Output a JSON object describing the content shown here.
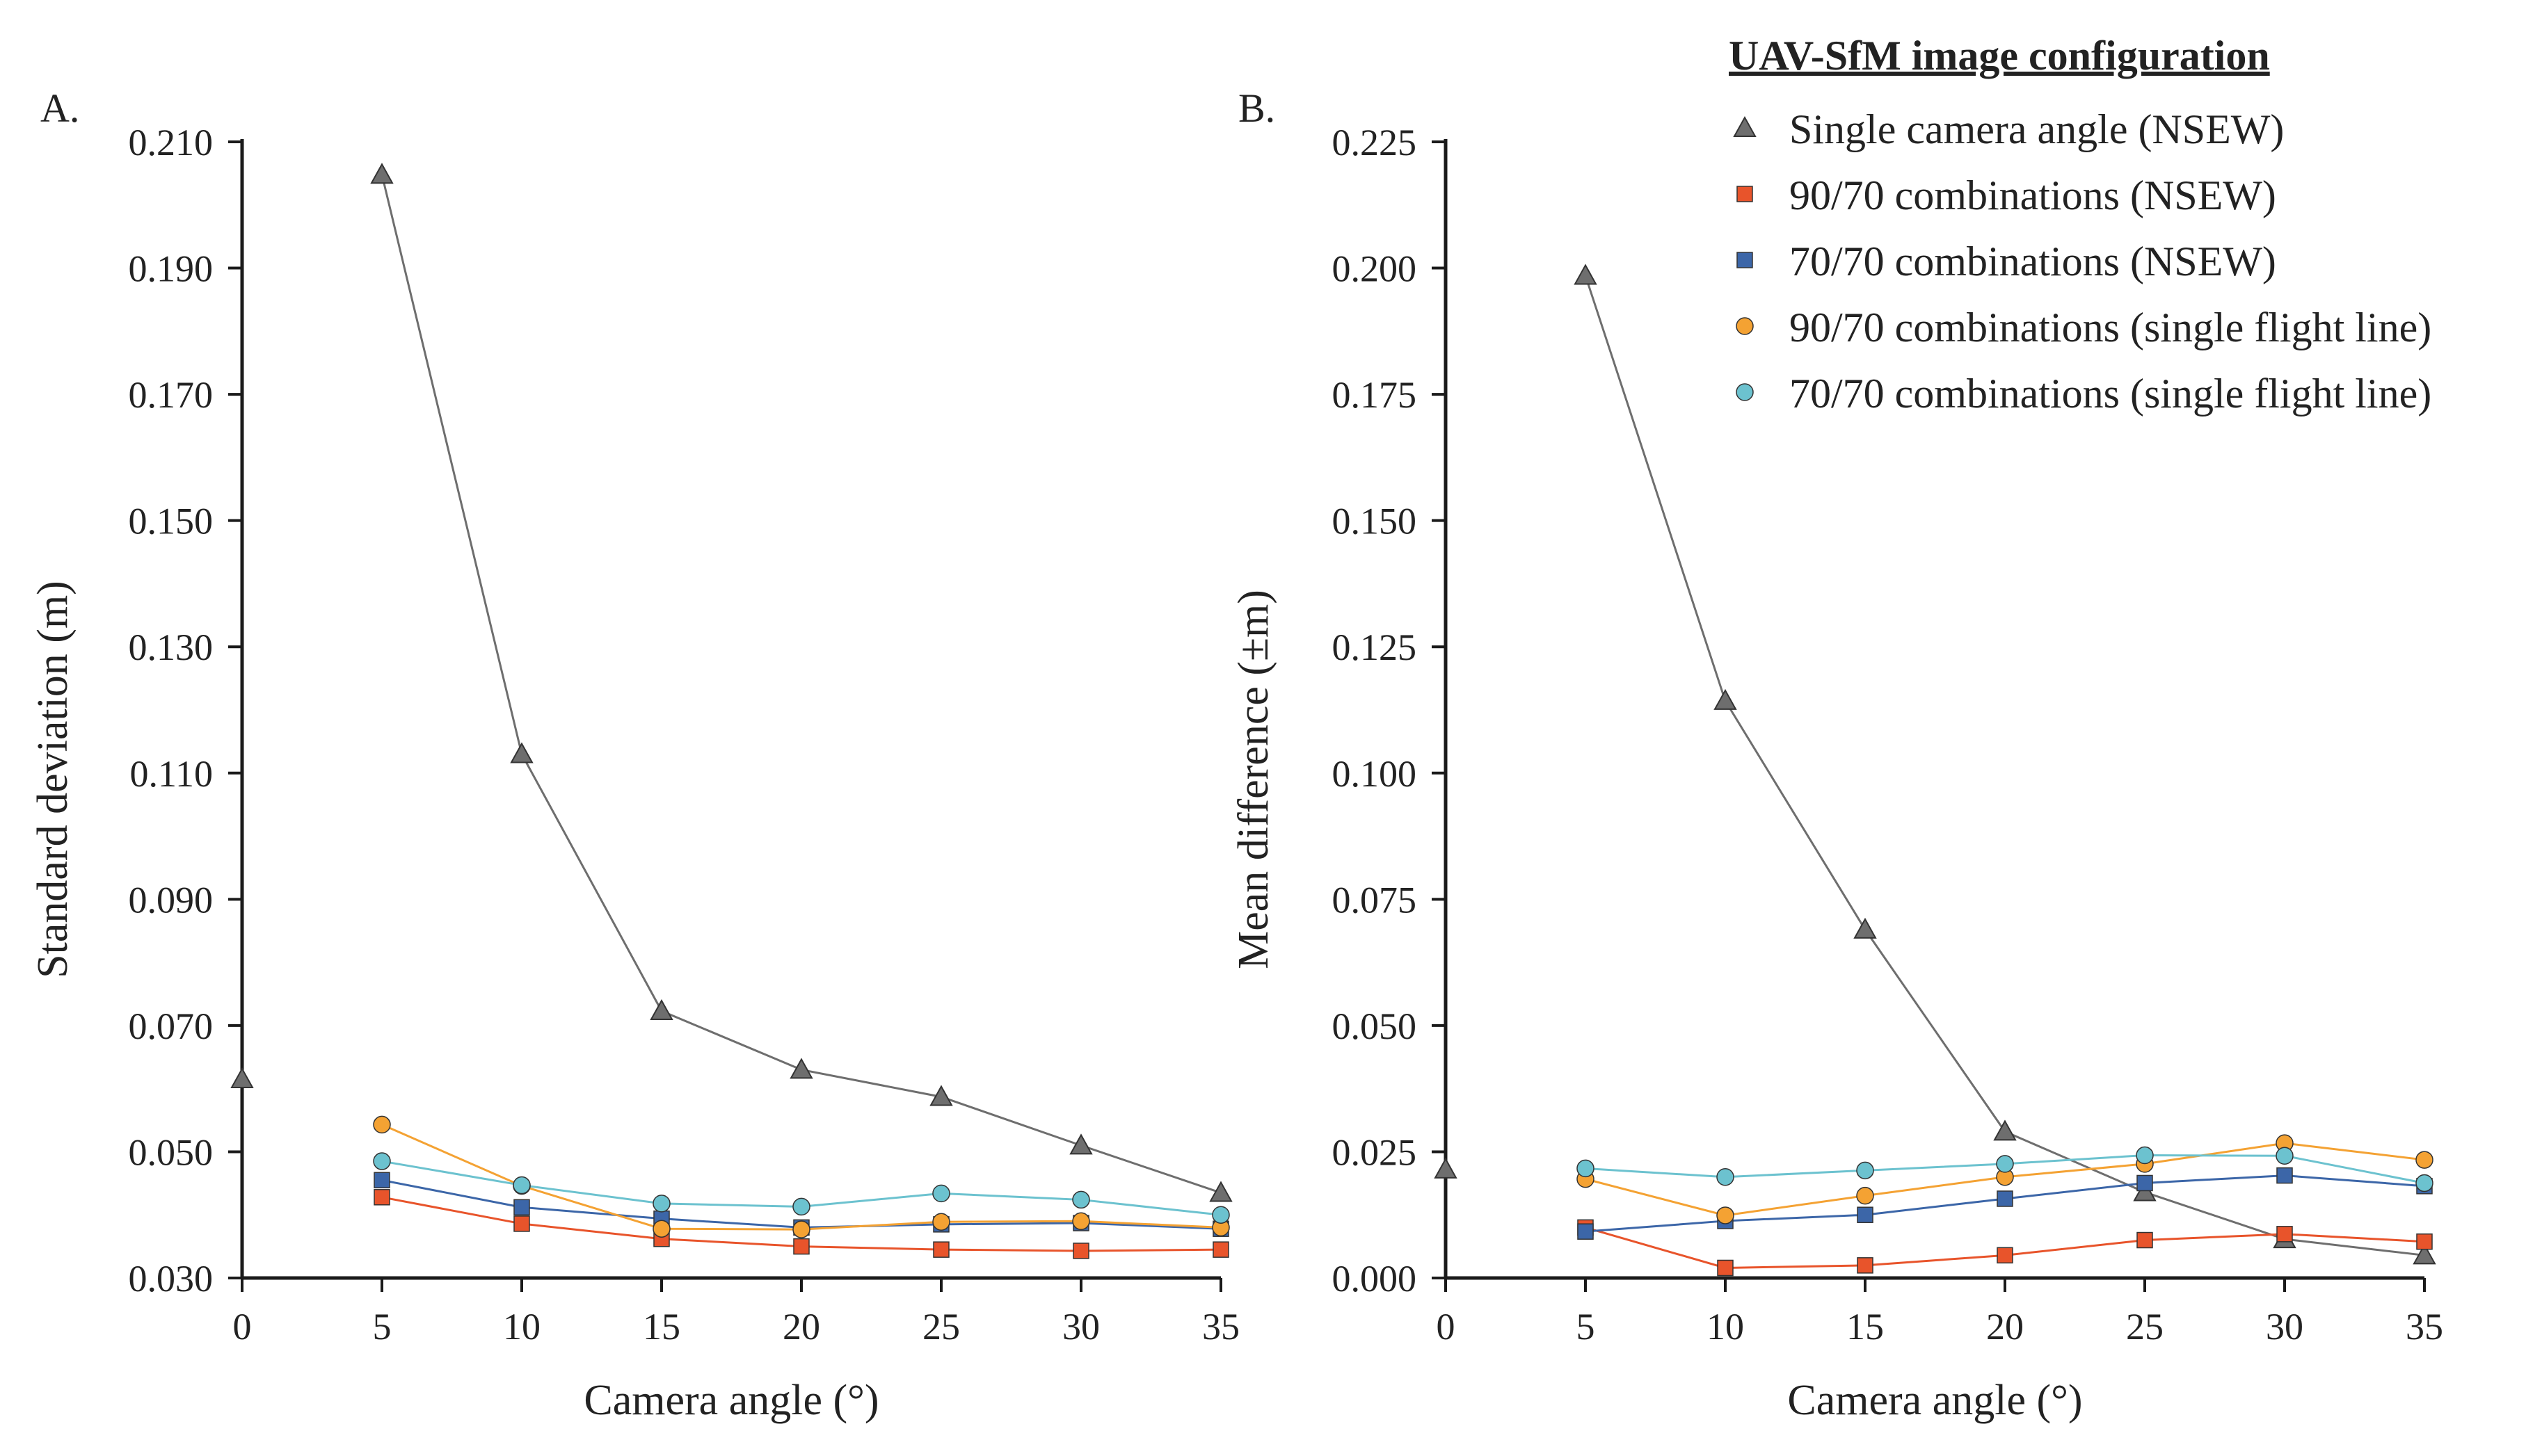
{
  "legend": {
    "title": "UAV-SfM image configuration"
  },
  "colors": {
    "single": "#6e6e6e",
    "nsew_90_70": "#e8542b",
    "nsew_70_70": "#3c66a8",
    "sfl_90_70": "#f4a233",
    "sfl_70_70": "#6cc2cf",
    "axis": "#1a1a1a"
  },
  "chart_data": [
    {
      "panel_label": "A.",
      "type": "line",
      "xlabel": "Camera angle (°)",
      "ylabel": "Standard deviation (m)",
      "xlim": [
        0,
        35
      ],
      "ylim": [
        0.03,
        0.21
      ],
      "xticks": [
        0,
        5,
        10,
        15,
        20,
        25,
        30,
        35
      ],
      "yticks": [
        0.03,
        0.05,
        0.07,
        0.09,
        0.11,
        0.13,
        0.15,
        0.17,
        0.19,
        0.21
      ],
      "ytick_labels": [
        "0.030",
        "0.050",
        "0.070",
        "0.090",
        "0.110",
        "0.130",
        "0.150",
        "0.170",
        "0.190",
        "0.210"
      ],
      "series": [
        {
          "name": "Single camera angle (NSEW)",
          "key": "single",
          "marker": "triangle",
          "x": [
            0,
            5,
            10,
            15,
            20,
            25,
            30,
            35
          ],
          "values": [
            0.0615,
            0.2048,
            0.113,
            0.0723,
            0.063,
            0.0587,
            0.051,
            0.0435
          ],
          "connect_from_index": 1
        },
        {
          "name": "90/70 combinations (NSEW)",
          "key": "nsew_90_70",
          "marker": "square",
          "x": [
            5,
            10,
            15,
            20,
            25,
            30,
            35
          ],
          "values": [
            0.0428,
            0.0386,
            0.0362,
            0.035,
            0.0345,
            0.0343,
            0.0345
          ]
        },
        {
          "name": "70/70 combinations (NSEW)",
          "key": "nsew_70_70",
          "marker": "square",
          "x": [
            5,
            10,
            15,
            20,
            25,
            30,
            35
          ],
          "values": [
            0.0455,
            0.0412,
            0.0394,
            0.038,
            0.0385,
            0.0387,
            0.0378
          ]
        },
        {
          "name": "90/70 combinations (single flight line)",
          "key": "sfl_90_70",
          "marker": "circle",
          "x": [
            5,
            10,
            15,
            20,
            25,
            30,
            35
          ],
          "values": [
            0.0543,
            0.0446,
            0.0378,
            0.0377,
            0.0389,
            0.039,
            0.038
          ]
        },
        {
          "name": "70/70 combinations (single flight line)",
          "key": "sfl_70_70",
          "marker": "circle",
          "x": [
            5,
            10,
            15,
            20,
            25,
            30,
            35
          ],
          "values": [
            0.0485,
            0.0447,
            0.0418,
            0.0413,
            0.0434,
            0.0424,
            0.04
          ]
        }
      ]
    },
    {
      "panel_label": "B.",
      "type": "line",
      "xlabel": "Camera angle (°)",
      "ylabel": "Mean difference (±m)",
      "xlim": [
        0,
        35
      ],
      "ylim": [
        0,
        0.225
      ],
      "xticks": [
        0,
        5,
        10,
        15,
        20,
        25,
        30,
        35
      ],
      "yticks": [
        0,
        0.025,
        0.05,
        0.075,
        0.1,
        0.125,
        0.15,
        0.175,
        0.2,
        0.225
      ],
      "ytick_labels": [
        "0.000",
        "0.025",
        "0.050",
        "0.075",
        "0.100",
        "0.125",
        "0.150",
        "0.175",
        "0.200",
        "0.225"
      ],
      "series": [
        {
          "name": "Single camera angle (NSEW)",
          "key": "single",
          "marker": "triangle",
          "x": [
            0,
            5,
            10,
            15,
            20,
            25,
            30,
            35
          ],
          "values": [
            0.0215,
            0.1985,
            0.1143,
            0.069,
            0.029,
            0.017,
            0.0077,
            0.0045
          ],
          "connect_from_index": 1
        },
        {
          "name": "90/70 combinations (NSEW)",
          "key": "nsew_90_70",
          "marker": "square",
          "x": [
            5,
            10,
            15,
            20,
            25,
            30,
            35
          ],
          "values": [
            0.01,
            0.002,
            0.0025,
            0.0045,
            0.0075,
            0.0087,
            0.0072
          ]
        },
        {
          "name": "70/70 combinations (NSEW)",
          "key": "nsew_70_70",
          "marker": "square",
          "x": [
            5,
            10,
            15,
            20,
            25,
            30,
            35
          ],
          "values": [
            0.0092,
            0.0113,
            0.0125,
            0.0157,
            0.0188,
            0.0203,
            0.0182
          ]
        },
        {
          "name": "90/70 combinations (single flight line)",
          "key": "sfl_90_70",
          "marker": "circle",
          "x": [
            5,
            10,
            15,
            20,
            25,
            30,
            35
          ],
          "values": [
            0.0196,
            0.0124,
            0.0163,
            0.02,
            0.0226,
            0.0267,
            0.0234
          ]
        },
        {
          "name": "70/70 combinations (single flight line)",
          "key": "sfl_70_70",
          "marker": "circle",
          "x": [
            5,
            10,
            15,
            20,
            25,
            30,
            35
          ],
          "values": [
            0.0217,
            0.02,
            0.0213,
            0.0226,
            0.0243,
            0.0242,
            0.0188
          ]
        }
      ]
    }
  ]
}
